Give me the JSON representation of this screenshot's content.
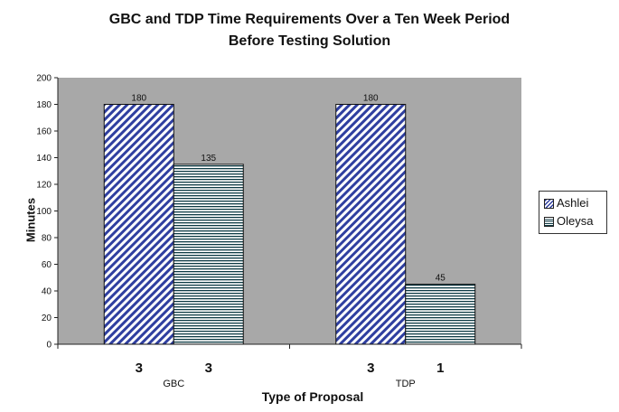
{
  "chart_data": {
    "type": "bar",
    "title_line1": "GBC and TDP Time Requirements Over a Ten Week Period",
    "title_line2": "Before Testing Solution",
    "xlabel": "Type of Proposal",
    "ylabel": "Minutes",
    "ylim": [
      0,
      200
    ],
    "y_ticks": [
      0,
      20,
      40,
      60,
      80,
      100,
      120,
      140,
      160,
      180,
      200
    ],
    "grid": false,
    "legend_position": "right",
    "categories": [
      "GBC",
      "TDP"
    ],
    "series": [
      {
        "name": "Ashlei",
        "values": [
          180,
          180
        ],
        "data_labels": [
          "180",
          "180"
        ],
        "count_labels": [
          "3",
          "3"
        ],
        "fill": "#2f3fa0",
        "pattern": "diagonal-stripes"
      },
      {
        "name": "Oleysa",
        "values": [
          135,
          45
        ],
        "data_labels": [
          "135",
          "45"
        ],
        "count_labels": [
          "3",
          "1"
        ],
        "fill": "#0c3a44",
        "pattern": "horizontal-stripes"
      }
    ]
  },
  "colors": {
    "plot_background": "#a8a8a8",
    "ashlei": "#2f3fa0",
    "oleysa": "#0c3a44"
  }
}
